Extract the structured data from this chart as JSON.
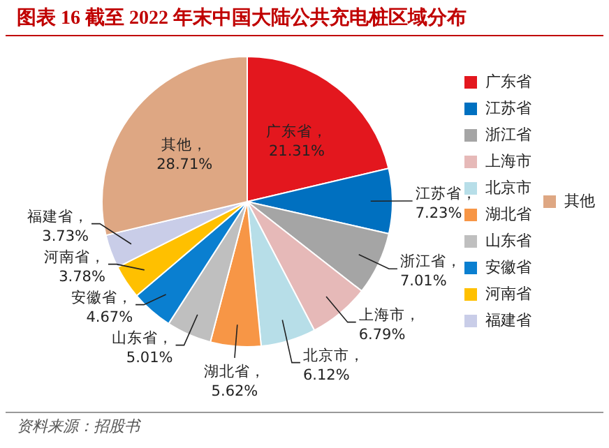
{
  "chart_data": {
    "type": "pie",
    "title": "图表 16 截至 2022 年末中国大陆公共充电桩区域分布",
    "categories": [
      "广东省",
      "江苏省",
      "浙江省",
      "上海市",
      "北京市",
      "湖北省",
      "山东省",
      "安徽省",
      "河南省",
      "福建省",
      "其他"
    ],
    "values": [
      21.31,
      7.23,
      7.01,
      6.79,
      6.12,
      5.62,
      5.01,
      4.67,
      3.78,
      3.73,
      28.71
    ],
    "value_labels": [
      "广东省，21.31%",
      "江苏省，7.23%",
      "浙江省，7.01%",
      "上海市，6.79%",
      "北京市，6.12%",
      "湖北省，5.62%",
      "山东省，5.01%",
      "安徽省，4.67%",
      "河南省，3.78%",
      "福建省，3.73%",
      "其他，28.71%"
    ],
    "colors": [
      "#e3171e",
      "#0070c0",
      "#a5a5a5",
      "#e6b9b8",
      "#b7dee8",
      "#f79646",
      "#bfbfbf",
      "#0a7fd0",
      "#ffc000",
      "#c9cde8",
      "#dea783"
    ],
    "legend": "right",
    "annotations": [
      "资料来源：招股书"
    ]
  }
}
